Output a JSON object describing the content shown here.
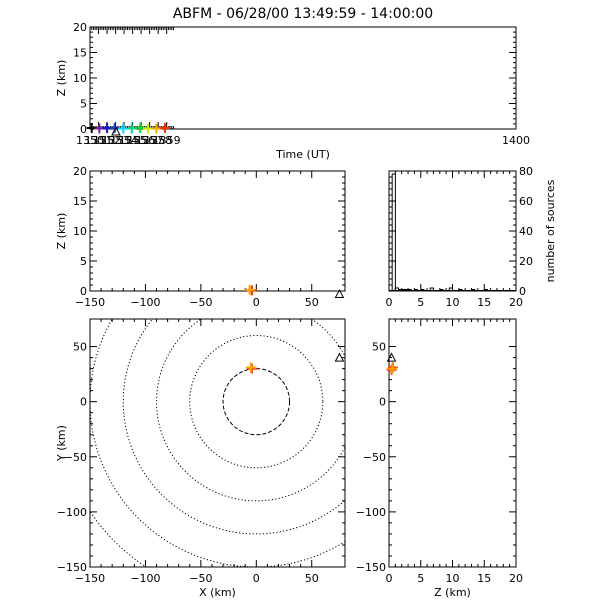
{
  "title": "ABFM - 06/28/00 13:49:59 - 14:00:00",
  "chart_data": [
    {
      "panel": "height-vs-time",
      "type": "scatter",
      "xlabel": "Time (UT)",
      "ylabel": "Z (km)",
      "xlim": [
        1350,
        1400
      ],
      "ylim": [
        0,
        20
      ],
      "xticks": [
        1350,
        1351,
        1352,
        1353,
        1354,
        1355,
        1356,
        1357,
        1358,
        1359,
        1400
      ],
      "yticks": [
        0,
        5,
        10,
        15,
        20
      ],
      "points": [
        {
          "x": 1350.2,
          "y": 0.2,
          "color": "#000000"
        },
        {
          "x": 1351.1,
          "y": 0.1,
          "color": "#7a1f9e"
        },
        {
          "x": 1352.0,
          "y": 0.2,
          "color": "#1a1ad0"
        },
        {
          "x": 1352.9,
          "y": 0.2,
          "color": "#1a3fd0"
        },
        {
          "x": 1353.9,
          "y": 0.1,
          "color": "#00d8ff"
        },
        {
          "x": 1354.9,
          "y": 0.1,
          "color": "#00d890"
        },
        {
          "x": 1355.9,
          "y": 0.2,
          "color": "#00e020"
        },
        {
          "x": 1356.8,
          "y": 0.1,
          "color": "#c8f000"
        },
        {
          "x": 1357.8,
          "y": 0.1,
          "color": "#ffa500"
        },
        {
          "x": 1358.8,
          "y": 0.2,
          "color": "#ff3000"
        }
      ],
      "stations": [
        {
          "x": 1353.05,
          "y": -0.5
        }
      ]
    },
    {
      "panel": "z-vs-x",
      "type": "scatter",
      "xlabel": "",
      "ylabel": "Z (km)",
      "xlim": [
        -150,
        80
      ],
      "ylim": [
        0,
        20
      ],
      "xticks": [
        -150,
        -100,
        -50,
        0,
        50
      ],
      "xtick_labels": [
        "−150",
        "−100",
        "−50",
        "0",
        "50"
      ],
      "yticks": [
        0,
        5,
        10,
        15,
        20
      ],
      "points": [
        {
          "x": -4,
          "y": 0.1,
          "color": "#ff3000"
        },
        {
          "x": -6,
          "y": 0.2,
          "color": "#ffa500"
        }
      ],
      "stations": [
        {
          "x": 75,
          "y": -0.5
        }
      ]
    },
    {
      "panel": "altitude-histogram",
      "type": "bar",
      "xlabel": "",
      "ylabel": "number of sources",
      "xlim": [
        0,
        20
      ],
      "ylim": [
        0,
        80
      ],
      "xticks": [
        0,
        5,
        10,
        15,
        20
      ],
      "yticks": [
        0,
        20,
        40,
        60,
        80
      ],
      "bin_width": 0.5,
      "bins": [
        {
          "start": 0.5,
          "count": 78
        },
        {
          "start": 1.0,
          "count": 2
        },
        {
          "start": 1.5,
          "count": 1
        },
        {
          "start": 2.0,
          "count": 1
        },
        {
          "start": 2.5,
          "count": 1
        },
        {
          "start": 3.0,
          "count": 1
        },
        {
          "start": 4.0,
          "count": 1
        },
        {
          "start": 5.0,
          "count": 1
        },
        {
          "start": 6.5,
          "count": 2
        },
        {
          "start": 8.0,
          "count": 1
        },
        {
          "start": 9.5,
          "count": 2
        },
        {
          "start": 11.0,
          "count": 1
        },
        {
          "start": 13.0,
          "count": 1
        },
        {
          "start": 15.0,
          "count": 1
        }
      ]
    },
    {
      "panel": "y-vs-x",
      "type": "scatter",
      "xlabel": "X (km)",
      "ylabel": "Y (km)",
      "xlim": [
        -150,
        80
      ],
      "ylim": [
        -150,
        75
      ],
      "xticks": [
        -150,
        -100,
        -50,
        0,
        50
      ],
      "xtick_labels": [
        "−150",
        "−100",
        "−50",
        "0",
        "50"
      ],
      "yticks": [
        -150,
        -100,
        -50,
        0,
        50
      ],
      "ytick_labels": [
        "−150",
        "−100",
        "−50",
        "0",
        "50"
      ],
      "range_rings_km": [
        30,
        60,
        90,
        120,
        150,
        180
      ],
      "points": [
        {
          "x": -4,
          "y": 30,
          "color": "#ff3000"
        },
        {
          "x": -5,
          "y": 31,
          "color": "#ffa500"
        }
      ],
      "stations": [
        {
          "x": 75,
          "y": 40
        }
      ]
    },
    {
      "panel": "y-vs-z",
      "type": "scatter",
      "xlabel": "Z (km)",
      "ylabel": "",
      "xlim": [
        0,
        20
      ],
      "ylim": [
        -150,
        75
      ],
      "xticks": [
        0,
        5,
        10,
        15,
        20
      ],
      "yticks": [
        -150,
        -100,
        -50,
        0,
        50
      ],
      "ytick_labels": [
        "−150",
        "−100",
        "−50",
        "0",
        "50"
      ],
      "points": [
        {
          "x": 0.4,
          "y": 29,
          "color": "#ff3000"
        },
        {
          "x": 0.6,
          "y": 31,
          "color": "#ff3000"
        },
        {
          "x": 0.5,
          "y": 30,
          "color": "#ffa500"
        }
      ],
      "stations": [
        {
          "x": 0.4,
          "y": 40
        }
      ]
    }
  ]
}
